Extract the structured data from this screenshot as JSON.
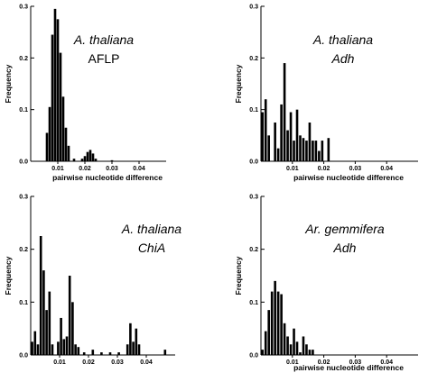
{
  "chart_data": [
    {
      "type": "bar",
      "title_lines": [
        {
          "text": "A. thaliana",
          "italic": true
        },
        {
          "text": "AFLP",
          "italic": false
        }
      ],
      "xlabel": "pairwise nucleotide difference",
      "ylabel": "Frequency",
      "xlim": [
        0,
        0.05
      ],
      "ylim": [
        0,
        0.3
      ],
      "xticks": [
        0.01,
        0.02,
        0.03,
        0.04
      ],
      "xtick_labels": [
        "0.01",
        "0.02",
        "0.03",
        "0.04"
      ],
      "yticks": [
        0,
        0.1,
        0.2,
        0.3
      ],
      "ytick_labels": [
        "0.0",
        "0.1",
        "0.2",
        "0.3"
      ],
      "x": [
        0.006,
        0.007,
        0.008,
        0.009,
        0.01,
        0.011,
        0.012,
        0.013,
        0.014,
        0.016,
        0.019,
        0.02,
        0.021,
        0.022,
        0.023,
        0.024,
        0.03
      ],
      "values": [
        0.055,
        0.105,
        0.245,
        0.295,
        0.275,
        0.21,
        0.125,
        0.065,
        0.03,
        0.005,
        0.005,
        0.01,
        0.018,
        0.022,
        0.015,
        0.005,
        0.002
      ]
    },
    {
      "type": "bar",
      "title_lines": [
        {
          "text": "A. thaliana",
          "italic": true
        },
        {
          "text": "Adh",
          "italic": true
        }
      ],
      "xlabel": "pairwise nucleotide difference",
      "ylabel": "Frequency",
      "xlim": [
        0,
        0.05
      ],
      "ylim": [
        0,
        0.3
      ],
      "xticks": [
        0.01,
        0.02,
        0.03,
        0.04
      ],
      "xtick_labels": [
        "0.01",
        "0.02",
        "0.03",
        "0.04"
      ],
      "yticks": [
        0,
        0.1,
        0.2,
        0.3
      ],
      "ytick_labels": [
        "0.0",
        "0.1",
        "0.2",
        "0.3"
      ],
      "x": [
        0.0005,
        0.0015,
        0.0025,
        0.0045,
        0.0055,
        0.0065,
        0.0075,
        0.0085,
        0.0095,
        0.0105,
        0.0115,
        0.0125,
        0.0135,
        0.0145,
        0.0155,
        0.0165,
        0.0175,
        0.0185,
        0.0195,
        0.0215
      ],
      "values": [
        0.095,
        0.12,
        0.05,
        0.075,
        0.025,
        0.11,
        0.19,
        0.06,
        0.095,
        0.04,
        0.1,
        0.05,
        0.045,
        0.04,
        0.075,
        0.04,
        0.04,
        0.02,
        0.04,
        0.045
      ]
    },
    {
      "type": "bar",
      "title_lines": [
        {
          "text": "A. thaliana",
          "italic": true
        },
        {
          "text": "ChiA",
          "italic": true
        }
      ],
      "xlabel": "",
      "ylabel": "Frequency",
      "xlim": [
        0,
        0.05
      ],
      "ylim": [
        0,
        0.3
      ],
      "xticks": [
        0.01,
        0.02,
        0.03,
        0.04
      ],
      "xtick_labels": [
        "0.01",
        "0.02",
        "0.03",
        "0.04"
      ],
      "yticks": [
        0,
        0.1,
        0.2,
        0.3
      ],
      "ytick_labels": [
        "0.0",
        "0.1",
        "0.2",
        "0.3"
      ],
      "x": [
        0.0005,
        0.0015,
        0.0025,
        0.0035,
        0.0045,
        0.0055,
        0.0065,
        0.0075,
        0.0095,
        0.0105,
        0.0115,
        0.0125,
        0.0135,
        0.0145,
        0.0155,
        0.0165,
        0.0185,
        0.0215,
        0.0245,
        0.0275,
        0.0305,
        0.0335,
        0.0345,
        0.0355,
        0.0365,
        0.0375,
        0.0465
      ],
      "values": [
        0.025,
        0.045,
        0.02,
        0.225,
        0.16,
        0.085,
        0.12,
        0.02,
        0.025,
        0.07,
        0.03,
        0.035,
        0.15,
        0.1,
        0.02,
        0.015,
        0.005,
        0.01,
        0.005,
        0.005,
        0.005,
        0.02,
        0.06,
        0.025,
        0.05,
        0.02,
        0.01
      ]
    },
    {
      "type": "bar",
      "title_lines": [
        {
          "text": "Ar. gemmifera",
          "italic": true
        },
        {
          "text": "Adh",
          "italic": true
        }
      ],
      "xlabel": "pairwise nucleotide difference",
      "ylabel": "Frequency",
      "xlim": [
        0,
        0.05
      ],
      "ylim": [
        0,
        0.3
      ],
      "xticks": [
        0.01,
        0.02,
        0.03,
        0.04
      ],
      "xtick_labels": [
        "0.01",
        "0.02",
        "0.03",
        "0.04"
      ],
      "yticks": [
        0,
        0.1,
        0.2,
        0.3
      ],
      "ytick_labels": [
        "0.0",
        "0.1",
        "0.2",
        "0.3"
      ],
      "x": [
        0.0005,
        0.0015,
        0.0025,
        0.0035,
        0.0045,
        0.0055,
        0.0065,
        0.0075,
        0.0085,
        0.0095,
        0.0105,
        0.0115,
        0.0125,
        0.0135,
        0.0145,
        0.0155,
        0.0165
      ],
      "values": [
        0.01,
        0.045,
        0.085,
        0.12,
        0.14,
        0.12,
        0.115,
        0.06,
        0.035,
        0.02,
        0.05,
        0.025,
        0.005,
        0.035,
        0.02,
        0.01,
        0.01
      ]
    }
  ]
}
